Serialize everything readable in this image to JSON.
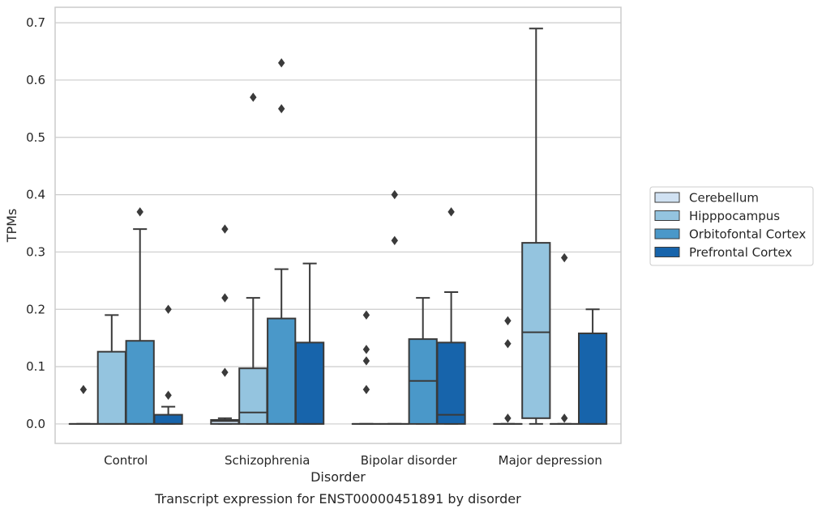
{
  "chart_data": {
    "type": "box",
    "xlabel": "Disorder",
    "ylabel": "TPMs",
    "ylim": [
      -0.034,
      0.727
    ],
    "yticks": [
      "0.0",
      "0.1",
      "0.2",
      "0.3",
      "0.4",
      "0.5",
      "0.6",
      "0.7"
    ],
    "grid": "horizontal",
    "categories": [
      "Control",
      "Schizophrenia",
      "Bipolar disorder",
      "Major depression"
    ],
    "caption": "Transcript expression for ENST00000451891 by disorder",
    "legend_position": "right",
    "series": [
      {
        "name": "Cerebellum",
        "color": "#d0e1f2",
        "boxes": [
          {
            "q1": 0,
            "median": 0,
            "q3": 0,
            "whisker_low": 0,
            "whisker_high": 0,
            "outliers": [
              0.06
            ]
          },
          {
            "q1": 0,
            "median": 0.005,
            "q3": 0.007,
            "whisker_low": 0,
            "whisker_high": 0.01,
            "outliers": [
              0.09,
              0.22,
              0.34
            ]
          },
          {
            "q1": 0,
            "median": 0,
            "q3": 0,
            "whisker_low": 0,
            "whisker_high": 0,
            "outliers": [
              0.06,
              0.11,
              0.13,
              0.19
            ]
          },
          {
            "q1": 0,
            "median": 0,
            "q3": 0,
            "whisker_low": 0,
            "whisker_high": 0,
            "outliers": [
              0.01,
              0.14,
              0.18
            ]
          }
        ]
      },
      {
        "name": "Hipppocampus",
        "color": "#94c4df",
        "boxes": [
          {
            "q1": 0,
            "median": 0,
            "q3": 0.126,
            "whisker_low": 0,
            "whisker_high": 0.19,
            "outliers": []
          },
          {
            "q1": 0,
            "median": 0.02,
            "q3": 0.097,
            "whisker_low": 0,
            "whisker_high": 0.22,
            "outliers": [
              0.57
            ]
          },
          {
            "q1": 0,
            "median": 0,
            "q3": 0,
            "whisker_low": 0,
            "whisker_high": 0,
            "outliers": [
              0.32,
              0.4
            ]
          },
          {
            "q1": 0.01,
            "median": 0.16,
            "q3": 0.316,
            "whisker_low": 0,
            "whisker_high": 0.69,
            "outliers": []
          }
        ]
      },
      {
        "name": "Orbitofontal Cortex",
        "color": "#4a98c9",
        "boxes": [
          {
            "q1": 0,
            "median": 0,
            "q3": 0.145,
            "whisker_low": 0,
            "whisker_high": 0.34,
            "outliers": [
              0.37
            ]
          },
          {
            "q1": 0,
            "median": 0,
            "q3": 0.184,
            "whisker_low": 0,
            "whisker_high": 0.27,
            "outliers": [
              0.55,
              0.63
            ]
          },
          {
            "q1": 0,
            "median": 0.075,
            "q3": 0.148,
            "whisker_low": 0,
            "whisker_high": 0.22,
            "outliers": []
          },
          {
            "q1": 0,
            "median": 0,
            "q3": 0,
            "whisker_low": 0,
            "whisker_high": 0,
            "outliers": [
              0.01,
              0.29
            ]
          }
        ]
      },
      {
        "name": "Prefrontal Cortex",
        "color": "#1764ab",
        "boxes": [
          {
            "q1": 0,
            "median": 0,
            "q3": 0.016,
            "whisker_low": 0,
            "whisker_high": 0.03,
            "outliers": [
              0.05,
              0.2
            ]
          },
          {
            "q1": 0,
            "median": 0,
            "q3": 0.142,
            "whisker_low": 0,
            "whisker_high": 0.28,
            "outliers": []
          },
          {
            "q1": 0,
            "median": 0.016,
            "q3": 0.142,
            "whisker_low": 0,
            "whisker_high": 0.23,
            "outliers": [
              0.37
            ]
          },
          {
            "q1": 0,
            "median": 0,
            "q3": 0.158,
            "whisker_low": 0,
            "whisker_high": 0.2,
            "outliers": []
          }
        ]
      }
    ]
  }
}
